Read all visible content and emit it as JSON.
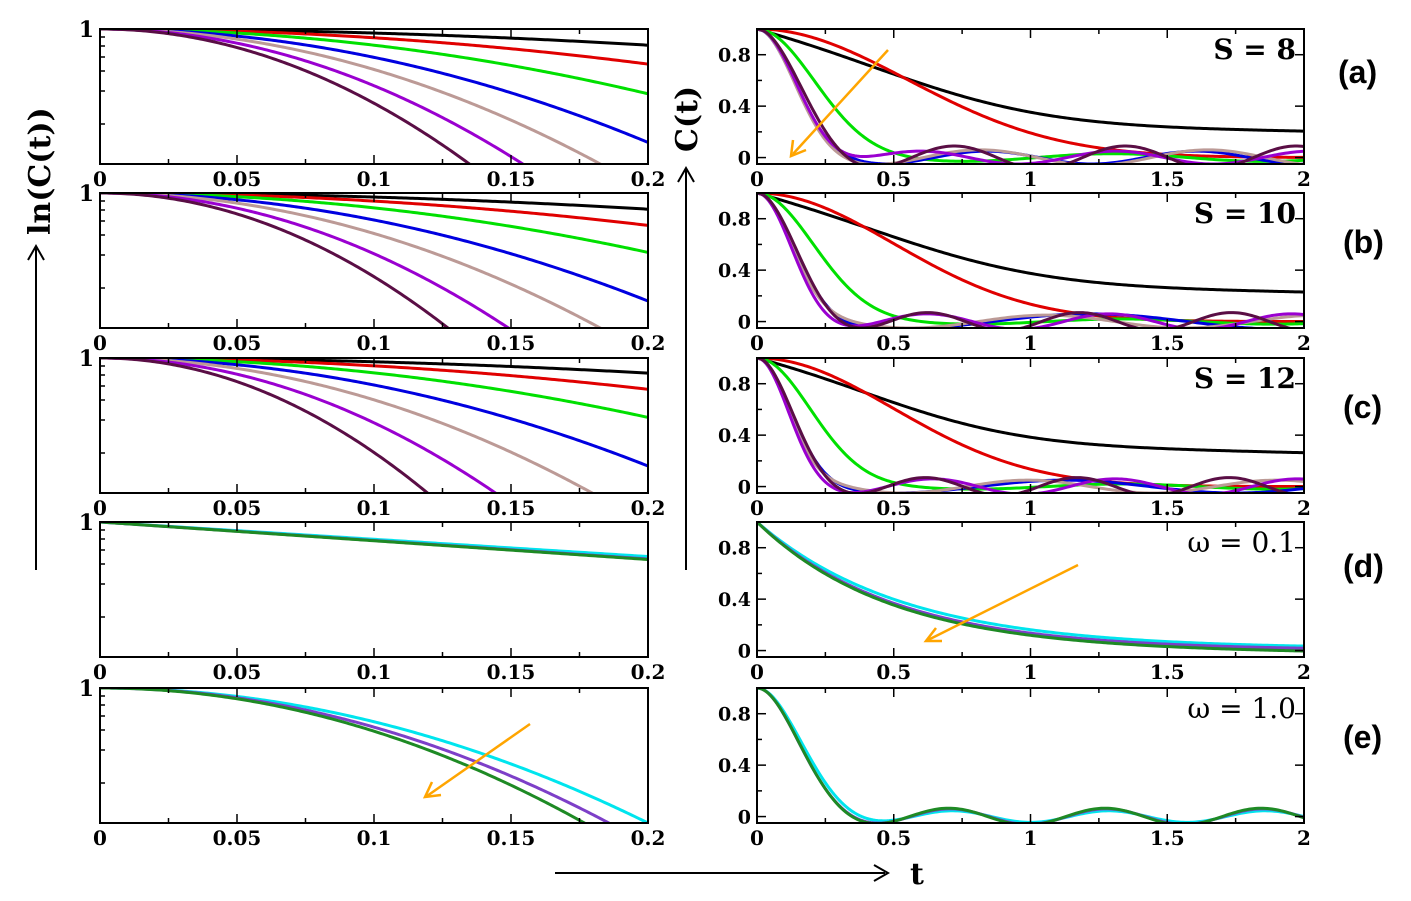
{
  "figure": {
    "left_ylabel": "ln(C(t))",
    "right_ylabel": "C(t)",
    "xlabel": "t",
    "panel_labels": [
      "(a)",
      "(b)",
      "(c)",
      "(d)",
      "(e)"
    ]
  },
  "colors": {
    "black": "#000000",
    "red": "#e00000",
    "green": "#00e000",
    "blue": "#0000e0",
    "rosybrown": "#bc9a96",
    "violet": "#9a00d0",
    "maroon": "#5a0e45",
    "cyan": "#00e5ee",
    "purple": "#7d3fc8",
    "darkgreen": "#1e8a24",
    "arrow": "#ffa500"
  },
  "chart_data": [
    {
      "type": "line",
      "panel": "(a)",
      "side": "left",
      "xlim": [
        0,
        0.2
      ],
      "ylim": [
        -1.0,
        0.0
      ],
      "x_ticklabels": [
        "0",
        "0.05",
        "0.1",
        "0.15",
        "0.2"
      ],
      "y_ticklabels": [
        "1"
      ],
      "decay": {
        "kind": "log_gauss",
        "rates": [
          3,
          6.5,
          12,
          21,
          30,
          42,
          55
        ]
      },
      "series_colors": [
        "black",
        "red",
        "green",
        "blue",
        "rosybrown",
        "violet",
        "maroon"
      ],
      "annotation": ""
    },
    {
      "type": "line",
      "panel": "(a)",
      "side": "right",
      "xlim": [
        0,
        2
      ],
      "ylim": [
        -0.05,
        1.0
      ],
      "x_ticklabels": [
        "0",
        "0.5",
        "1",
        "1.5",
        "2"
      ],
      "y_ticklabels": [
        "0",
        "0.4",
        "0.8"
      ],
      "decay": {
        "kind": "osc_decay",
        "series": [
          {
            "a": 0.48,
            "s1": 0.55,
            "plat": 0.52,
            "ts": 4.5,
            "A2": 0.0,
            "f": 0,
            "ph": 0
          },
          {
            "a": 1.0,
            "s1": 0.55,
            "plat": 0.0,
            "ts": 1,
            "A2": 0.0,
            "f": 0,
            "ph": 0
          },
          {
            "a": 1.0,
            "s1": 0.2,
            "plat": 0.0,
            "ts": 1,
            "A2": 0.03,
            "f": 0.9,
            "ph": 0.5
          },
          {
            "a": 1.0,
            "s1": 0.13,
            "plat": 0.0,
            "ts": 1,
            "A2": 0.05,
            "f": 1.3,
            "ph": 1.0
          },
          {
            "a": 1.0,
            "s1": 0.13,
            "plat": 0.0,
            "ts": 1,
            "A2": 0.06,
            "f": 1.2,
            "ph": 1.7
          },
          {
            "a": 1.0,
            "s1": 0.14,
            "plat": 0.0,
            "ts": 1,
            "A2": 0.05,
            "f": 1.4,
            "ph": 2.6
          },
          {
            "a": 1.0,
            "s1": 0.14,
            "plat": 0.0,
            "ts": 1,
            "A2": 0.09,
            "f": 1.6,
            "ph": 0.6
          }
        ]
      },
      "series_colors": [
        "black",
        "red",
        "green",
        "blue",
        "rosybrown",
        "violet",
        "maroon"
      ],
      "annotation": "S = 8"
    },
    {
      "type": "line",
      "panel": "(b)",
      "side": "left",
      "xlim": [
        0,
        0.2
      ],
      "ylim": [
        -1.0,
        0.0
      ],
      "x_ticklabels": [
        "0",
        "0.05",
        "0.1",
        "0.15",
        "0.2"
      ],
      "y_ticklabels": [
        "1"
      ],
      "decay": {
        "kind": "log_gauss",
        "rates": [
          3,
          6,
          11,
          20,
          30,
          45,
          62
        ]
      },
      "series_colors": [
        "black",
        "red",
        "green",
        "blue",
        "rosybrown",
        "violet",
        "maroon"
      ],
      "annotation": ""
    },
    {
      "type": "line",
      "panel": "(b)",
      "side": "right",
      "xlim": [
        0,
        2
      ],
      "ylim": [
        -0.05,
        1.0
      ],
      "x_ticklabels": [
        "0",
        "0.5",
        "1",
        "1.5",
        "2"
      ],
      "y_ticklabels": [
        "0",
        "0.4",
        "0.8"
      ],
      "decay": {
        "kind": "osc_decay",
        "series": [
          {
            "a": 0.45,
            "s1": 0.55,
            "plat": 0.55,
            "ts": 5.0,
            "A2": 0.0,
            "f": 0,
            "ph": 0
          },
          {
            "a": 1.0,
            "s1": 0.5,
            "plat": 0.0,
            "ts": 1,
            "A2": 0.0,
            "f": 0,
            "ph": 0
          },
          {
            "a": 1.0,
            "s1": 0.2,
            "plat": 0.0,
            "ts": 1,
            "A2": 0.02,
            "f": 0.9,
            "ph": 0.3
          },
          {
            "a": 1.0,
            "s1": 0.13,
            "plat": 0.0,
            "ts": 1,
            "A2": 0.06,
            "f": 0.7,
            "ph": 2.5
          },
          {
            "a": 1.0,
            "s1": 0.12,
            "plat": 0.0,
            "ts": 1,
            "A2": 0.05,
            "f": 1.0,
            "ph": 1.2
          },
          {
            "a": 1.0,
            "s1": 0.12,
            "plat": 0.0,
            "ts": 1,
            "A2": 0.06,
            "f": 1.5,
            "ph": 2.0
          },
          {
            "a": 1.0,
            "s1": 0.13,
            "plat": 0.0,
            "ts": 1,
            "A2": 0.07,
            "f": 1.8,
            "ph": 0.8
          }
        ]
      },
      "series_colors": [
        "black",
        "red",
        "green",
        "blue",
        "rosybrown",
        "violet",
        "maroon"
      ],
      "annotation": "S = 10"
    },
    {
      "type": "line",
      "panel": "(c)",
      "side": "left",
      "xlim": [
        0,
        0.2
      ],
      "ylim": [
        -1.0,
        0.0
      ],
      "x_ticklabels": [
        "0",
        "0.05",
        "0.1",
        "0.15",
        "0.2"
      ],
      "y_ticklabels": [
        "1"
      ],
      "decay": {
        "kind": "log_gauss",
        "rates": [
          2.8,
          5.8,
          11,
          20,
          31,
          48,
          70
        ]
      },
      "series_colors": [
        "black",
        "red",
        "green",
        "blue",
        "rosybrown",
        "violet",
        "maroon"
      ],
      "annotation": ""
    },
    {
      "type": "line",
      "panel": "(c)",
      "side": "right",
      "xlim": [
        0,
        2
      ],
      "ylim": [
        -0.05,
        1.0
      ],
      "x_ticklabels": [
        "0",
        "0.5",
        "1",
        "1.5",
        "2"
      ],
      "y_ticklabels": [
        "0",
        "0.4",
        "0.8"
      ],
      "decay": {
        "kind": "osc_decay",
        "series": [
          {
            "a": 0.42,
            "s1": 0.5,
            "plat": 0.6,
            "ts": 5.0,
            "A2": 0.0,
            "f": 0,
            "ph": 0
          },
          {
            "a": 1.0,
            "s1": 0.5,
            "plat": 0.0,
            "ts": 1,
            "A2": 0.0,
            "f": 0,
            "ph": 0
          },
          {
            "a": 1.0,
            "s1": 0.19,
            "plat": 0.0,
            "ts": 1,
            "A2": 0.02,
            "f": 0.9,
            "ph": 0.3
          },
          {
            "a": 1.0,
            "s1": 0.12,
            "plat": 0.0,
            "ts": 1,
            "A2": 0.05,
            "f": 0.8,
            "ph": 2.2
          },
          {
            "a": 1.0,
            "s1": 0.11,
            "plat": 0.0,
            "ts": 1,
            "A2": 0.05,
            "f": 1.1,
            "ph": 1.0
          },
          {
            "a": 1.0,
            "s1": 0.11,
            "plat": 0.0,
            "ts": 1,
            "A2": 0.06,
            "f": 1.5,
            "ph": 1.8
          },
          {
            "a": 1.0,
            "s1": 0.12,
            "plat": 0.0,
            "ts": 1,
            "A2": 0.07,
            "f": 1.8,
            "ph": 0.9
          }
        ]
      },
      "series_colors": [
        "black",
        "red",
        "green",
        "blue",
        "rosybrown",
        "violet",
        "maroon"
      ],
      "annotation": "S = 12"
    },
    {
      "type": "line",
      "panel": "(d)",
      "side": "left",
      "xlim": [
        0,
        0.2
      ],
      "ylim": [
        -1.0,
        0.0
      ],
      "x_ticklabels": [
        "0",
        "0.05",
        "0.1",
        "0.15",
        "0.2"
      ],
      "y_ticklabels": [
        "1"
      ],
      "decay": {
        "kind": "log_lin",
        "rates": [
          1.28,
          1.37,
          1.39
        ]
      },
      "series_colors": [
        "cyan",
        "purple",
        "darkgreen"
      ],
      "annotation": ""
    },
    {
      "type": "line",
      "panel": "(d)",
      "side": "right",
      "xlim": [
        0,
        2
      ],
      "ylim": [
        -0.05,
        1.0
      ],
      "x_ticklabels": [
        "0",
        "0.5",
        "1",
        "1.5",
        "2"
      ],
      "y_ticklabels": [
        "0",
        "0.4",
        "0.8"
      ],
      "decay": {
        "kind": "exp",
        "rates": [
          1.85,
          2.0,
          2.05
        ],
        "offsets": [
          0.01,
          0.0,
          -0.02
        ]
      },
      "series_colors": [
        "cyan",
        "purple",
        "darkgreen"
      ],
      "annotation": "ω = 0.1"
    },
    {
      "type": "line",
      "panel": "(e)",
      "side": "left",
      "xlim": [
        0,
        0.2
      ],
      "ylim": [
        -1.0,
        0.0
      ],
      "x_ticklabels": [
        "0",
        "0.05",
        "0.1",
        "0.15",
        "0.2"
      ],
      "y_ticklabels": [
        "1"
      ],
      "decay": {
        "kind": "log_gauss",
        "rates": [
          25,
          29,
          32
        ]
      },
      "series_colors": [
        "cyan",
        "purple",
        "darkgreen"
      ],
      "annotation": ""
    },
    {
      "type": "line",
      "panel": "(e)",
      "side": "right",
      "xlim": [
        0,
        2
      ],
      "ylim": [
        -0.05,
        1.0
      ],
      "x_ticklabels": [
        "0",
        "0.5",
        "1",
        "1.5",
        "2"
      ],
      "y_ticklabels": [
        "0",
        "0.4",
        "0.8"
      ],
      "decay": {
        "kind": "osc_decay",
        "series": [
          {
            "a": 1.0,
            "s1": 0.15,
            "plat": 0.0,
            "ts": 1,
            "A2": 0.045,
            "f": 1.75,
            "ph": 0.0
          },
          {
            "a": 1.0,
            "s1": 0.14,
            "plat": 0.0,
            "ts": 1,
            "A2": 0.06,
            "f": 1.75,
            "ph": 0.1
          },
          {
            "a": 1.0,
            "s1": 0.14,
            "plat": 0.0,
            "ts": 1,
            "A2": 0.065,
            "f": 1.75,
            "ph": 0.15
          }
        ]
      },
      "series_colors": [
        "cyan",
        "purple",
        "darkgreen"
      ],
      "annotation": "ω = 1.0"
    }
  ]
}
